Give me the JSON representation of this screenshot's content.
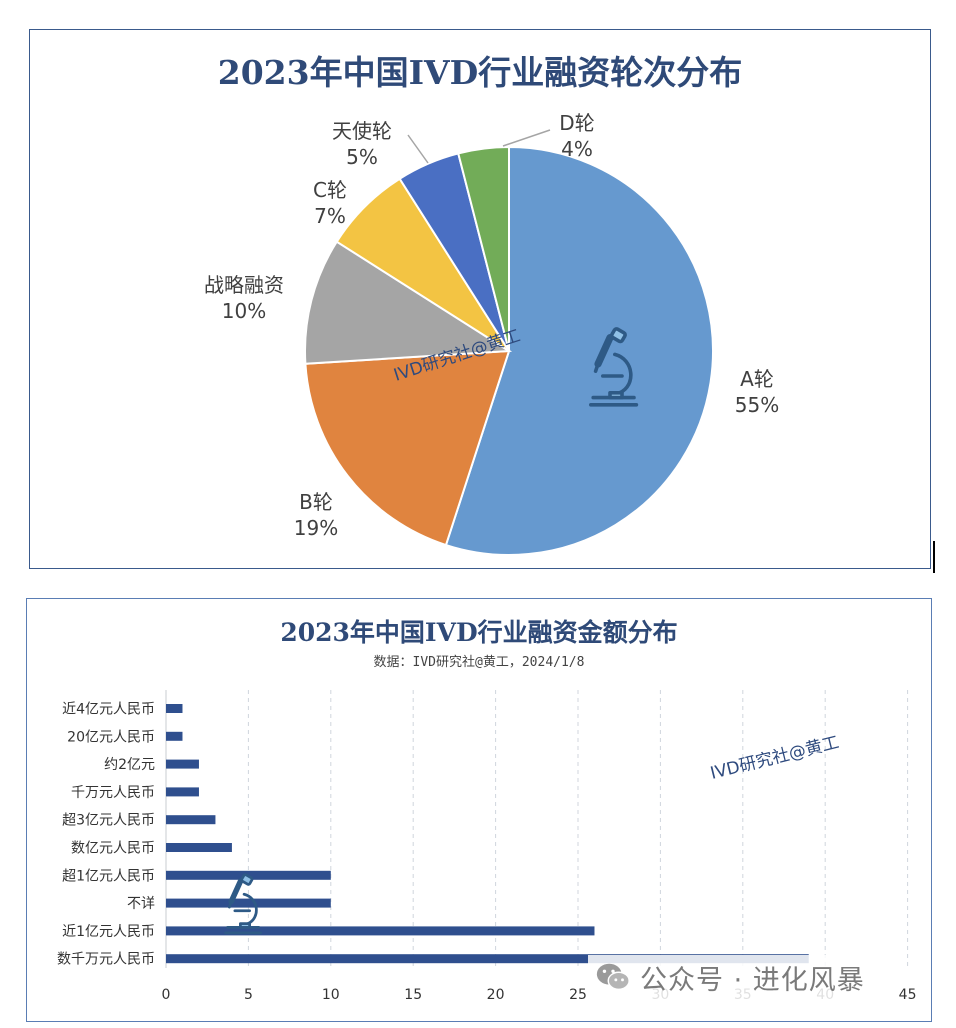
{
  "chart_data": [
    {
      "type": "pie",
      "title": "2023年中国IVD行业融资轮次分布",
      "slices": [
        {
          "label": "A轮",
          "percent_label": "55%",
          "value": 55,
          "color": "#6699cf"
        },
        {
          "label": "B轮",
          "percent_label": "19%",
          "value": 19,
          "color": "#e0843f"
        },
        {
          "label": "战略融资",
          "percent_label": "10%",
          "value": 10,
          "color": "#a5a5a5"
        },
        {
          "label": "C轮",
          "percent_label": "7%",
          "value": 7,
          "color": "#f3c443"
        },
        {
          "label": "天使轮",
          "percent_label": "5%",
          "value": 5,
          "color": "#4a6fc3"
        },
        {
          "label": "D轮",
          "percent_label": "4%",
          "value": 4,
          "color": "#72ac58"
        }
      ],
      "watermark": "IVD研究社@黄工"
    },
    {
      "type": "bar",
      "orientation": "horizontal",
      "title": "2023年中国IVD行业融资金额分布",
      "subtitle": "数据：IVD研究社@黄工，2024/1/8",
      "categories": [
        "近4亿元人民币",
        "20亿元人民币",
        "约2亿元",
        "千万元人民币",
        "超3亿元人民币",
        "数亿元人民币",
        "超1亿元人民币",
        "不详",
        "近1亿元人民币",
        "数千万元人民币"
      ],
      "values": [
        1,
        1,
        2,
        2,
        3,
        4,
        10,
        10,
        26,
        39
      ],
      "xlim": [
        0,
        45
      ],
      "xticks": [
        0,
        5,
        10,
        15,
        20,
        25,
        30,
        35,
        40,
        45
      ],
      "grid": true,
      "bar_color": "#2f4f8e",
      "watermark": "IVD研究社@黄工"
    }
  ],
  "footer": {
    "text": "公众号 · 进化风暴"
  }
}
